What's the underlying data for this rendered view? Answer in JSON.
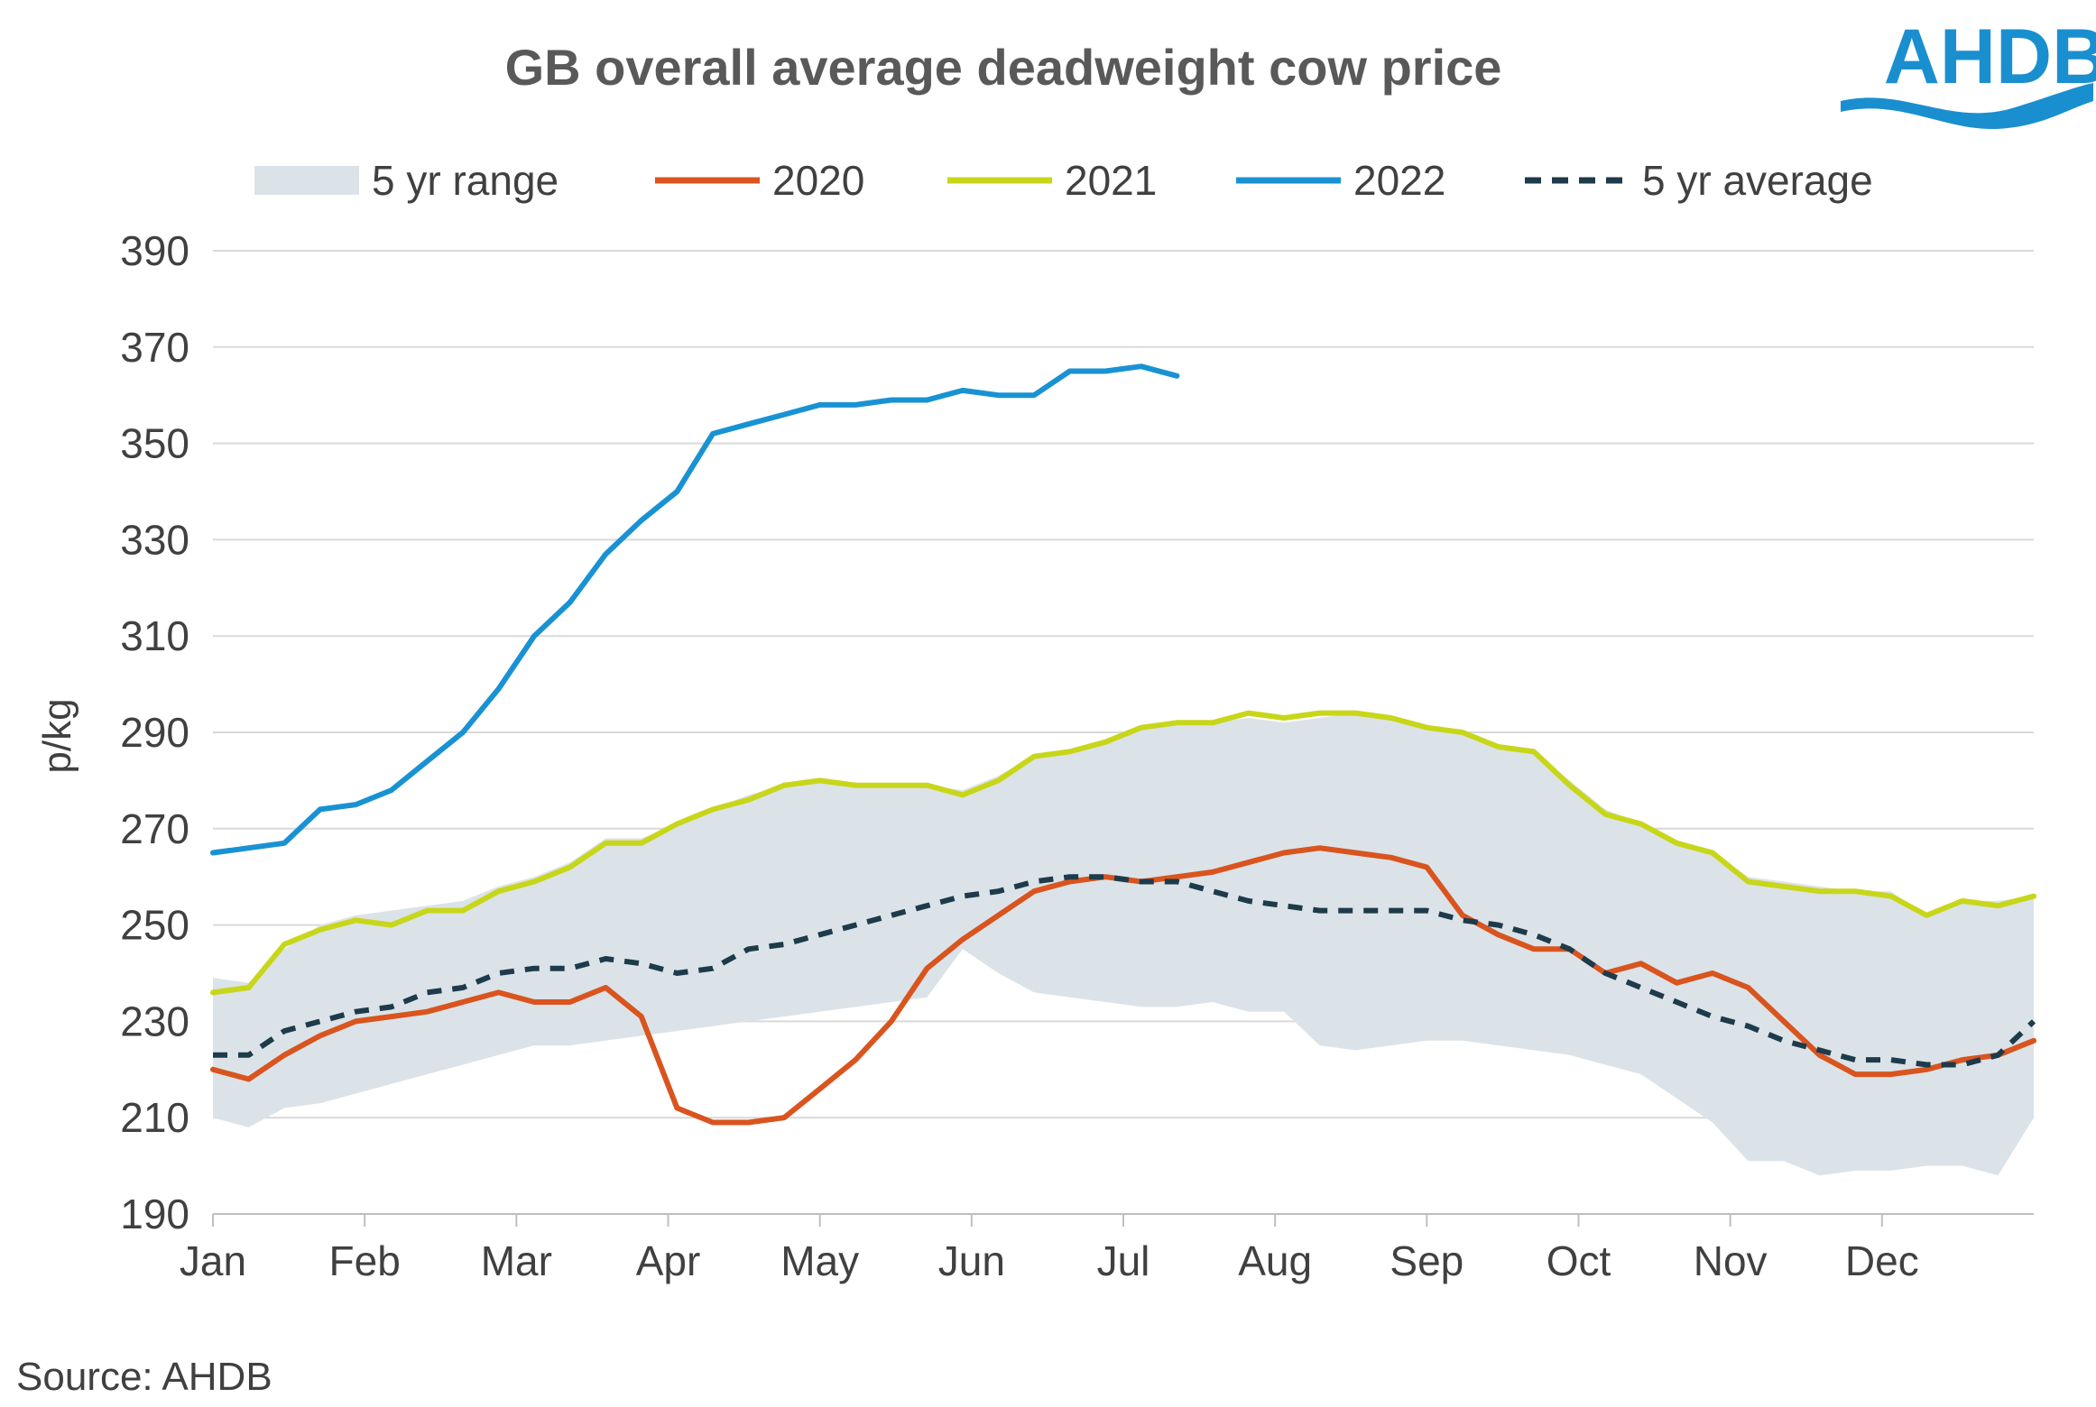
{
  "logo": {
    "text": "AHDB",
    "color": "#1a8fcf"
  },
  "source": "Source: AHDB",
  "legend": [
    {
      "key": "range",
      "label": "5 yr range",
      "style": "area",
      "color": "#dbe3e8"
    },
    {
      "key": "s2020",
      "label": "2020",
      "style": "line",
      "color": "#d9541e"
    },
    {
      "key": "s2021",
      "label": "2021",
      "style": "line",
      "color": "#c8d61a"
    },
    {
      "key": "s2022",
      "label": "2022",
      "style": "line",
      "color": "#1992d4"
    },
    {
      "key": "avg",
      "label": "5 yr average",
      "style": "dashed",
      "color": "#1d3b4a"
    }
  ],
  "chart_data": {
    "type": "line",
    "title": "GB overall average deadweight cow price",
    "ylabel": "p/kg",
    "xlabel": "",
    "ylim": [
      190,
      390
    ],
    "yticks": [
      190,
      210,
      230,
      250,
      270,
      290,
      310,
      330,
      350,
      370,
      390
    ],
    "month_labels": [
      "Jan",
      "Feb",
      "Mar",
      "Apr",
      "May",
      "Jun",
      "Jul",
      "Aug",
      "Sep",
      "Oct",
      "Nov",
      "Dec"
    ],
    "x_unit": "week of year",
    "xlim": [
      1,
      52
    ],
    "grid": true,
    "legend_position": "top",
    "band": {
      "name": "5 yr range",
      "x": [
        1,
        2,
        3,
        4,
        5,
        6,
        7,
        8,
        9,
        10,
        11,
        12,
        13,
        14,
        15,
        16,
        17,
        18,
        19,
        20,
        21,
        22,
        23,
        24,
        25,
        26,
        27,
        28,
        29,
        30,
        31,
        32,
        33,
        34,
        35,
        36,
        37,
        38,
        39,
        40,
        41,
        42,
        43,
        44,
        45,
        46,
        47,
        48,
        49,
        50,
        51,
        52
      ],
      "low": [
        210,
        208,
        212,
        213,
        215,
        217,
        219,
        221,
        223,
        225,
        225,
        226,
        227,
        228,
        229,
        230,
        231,
        232,
        233,
        234,
        235,
        245,
        240,
        236,
        235,
        234,
        233,
        233,
        234,
        232,
        232,
        225,
        224,
        225,
        226,
        226,
        225,
        224,
        223,
        221,
        219,
        214,
        209,
        201,
        201,
        198,
        199,
        199,
        200,
        200,
        198,
        210
      ],
      "high": [
        239,
        238,
        245,
        250,
        252,
        253,
        254,
        255,
        258,
        260,
        263,
        268,
        268,
        271,
        274,
        277,
        279,
        280,
        279,
        279,
        279,
        278,
        281,
        285,
        286,
        288,
        291,
        292,
        292,
        293,
        292,
        293,
        294,
        293,
        291,
        290,
        287,
        286,
        280,
        274,
        271,
        267,
        265,
        260,
        259,
        258,
        257,
        257,
        252,
        255,
        255,
        256
      ]
    },
    "series": [
      {
        "name": "2020",
        "x": [
          1,
          2,
          3,
          4,
          5,
          6,
          7,
          8,
          9,
          10,
          11,
          12,
          13,
          14,
          15,
          16,
          17,
          18,
          19,
          20,
          21,
          22,
          23,
          24,
          25,
          26,
          27,
          28,
          29,
          30,
          31,
          32,
          33,
          34,
          35,
          36,
          37,
          38,
          39,
          40,
          41,
          42,
          43,
          44,
          45,
          46,
          47,
          48,
          49,
          50,
          51,
          52
        ],
        "values": [
          220,
          218,
          223,
          227,
          230,
          231,
          232,
          234,
          236,
          234,
          234,
          237,
          231,
          212,
          209,
          209,
          210,
          216,
          222,
          230,
          241,
          247,
          252,
          257,
          259,
          260,
          259,
          260,
          261,
          263,
          265,
          266,
          265,
          264,
          262,
          252,
          248,
          245,
          245,
          240,
          242,
          238,
          240,
          237,
          230,
          223,
          219,
          219,
          220,
          222,
          223,
          226
        ]
      },
      {
        "name": "2021",
        "x": [
          1,
          2,
          3,
          4,
          5,
          6,
          7,
          8,
          9,
          10,
          11,
          12,
          13,
          14,
          15,
          16,
          17,
          18,
          19,
          20,
          21,
          22,
          23,
          24,
          25,
          26,
          27,
          28,
          29,
          30,
          31,
          32,
          33,
          34,
          35,
          36,
          37,
          38,
          39,
          40,
          41,
          42,
          43,
          44,
          45,
          46,
          47,
          48,
          49,
          50,
          51,
          52
        ],
        "values": [
          236,
          237,
          246,
          249,
          251,
          250,
          253,
          253,
          257,
          259,
          262,
          267,
          267,
          271,
          274,
          276,
          279,
          280,
          279,
          279,
          279,
          277,
          280,
          285,
          286,
          288,
          291,
          292,
          292,
          294,
          293,
          294,
          294,
          293,
          291,
          290,
          287,
          286,
          279,
          273,
          271,
          267,
          265,
          259,
          258,
          257,
          257,
          256,
          252,
          255,
          254,
          256
        ]
      },
      {
        "name": "2022",
        "x": [
          1,
          2,
          3,
          4,
          5,
          6,
          7,
          8,
          9,
          10,
          11,
          12,
          13,
          14,
          15,
          16,
          17,
          18,
          19,
          20,
          21,
          22,
          23,
          24,
          25,
          26,
          27,
          28
        ],
        "values": [
          265,
          266,
          267,
          274,
          275,
          278,
          284,
          290,
          299,
          310,
          317,
          327,
          334,
          340,
          352,
          354,
          356,
          358,
          358,
          359,
          359,
          361,
          360,
          360,
          365,
          365,
          366,
          364
        ]
      },
      {
        "name": "5 yr average",
        "x": [
          1,
          2,
          3,
          4,
          5,
          6,
          7,
          8,
          9,
          10,
          11,
          12,
          13,
          14,
          15,
          16,
          17,
          18,
          19,
          20,
          21,
          22,
          23,
          24,
          25,
          26,
          27,
          28,
          29,
          30,
          31,
          32,
          33,
          34,
          35,
          36,
          37,
          38,
          39,
          40,
          41,
          42,
          43,
          44,
          45,
          46,
          47,
          48,
          49,
          50,
          51,
          52
        ],
        "values": [
          223,
          223,
          228,
          230,
          232,
          233,
          236,
          237,
          240,
          241,
          241,
          243,
          242,
          240,
          241,
          245,
          246,
          248,
          250,
          252,
          254,
          256,
          257,
          259,
          260,
          260,
          259,
          259,
          257,
          255,
          254,
          253,
          253,
          253,
          253,
          251,
          250,
          248,
          245,
          240,
          237,
          234,
          231,
          229,
          226,
          224,
          222,
          222,
          221,
          221,
          223,
          230
        ]
      }
    ]
  }
}
